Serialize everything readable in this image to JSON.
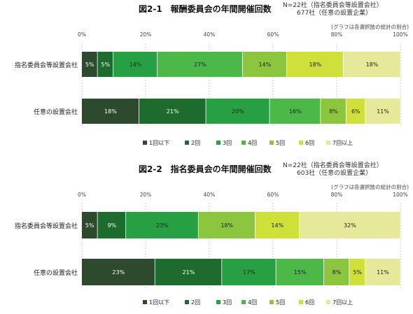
{
  "colors": [
    "#2e4a2e",
    "#1e6b2e",
    "#26a043",
    "#4bb848",
    "#8cc63f",
    "#cfe03a",
    "#e6e89a"
  ],
  "chart_data": [
    {
      "type": "bar",
      "stacked": "horizontal-100%",
      "title": "図2-1　報酬委員会の年間開催回数",
      "n_note": [
        "N=22社（指名委員会等設置会社）",
        "677社（任意の設置企業）"
      ],
      "note": "(グラフは各選択肢の総計の割合)",
      "ticks": [
        "0%",
        "20%",
        "40%",
        "60%",
        "80%",
        "100%"
      ],
      "xlim": [
        0,
        100
      ],
      "grid": true,
      "legend_position": "bottom",
      "categories": [
        "指名委員会等設置会社",
        "任意の設置会社"
      ],
      "series": [
        {
          "name": "1回以下",
          "values": [
            5,
            18
          ]
        },
        {
          "name": "2回",
          "values": [
            5,
            21
          ]
        },
        {
          "name": "3回",
          "values": [
            14,
            20
          ]
        },
        {
          "name": "4回",
          "values": [
            27,
            16
          ]
        },
        {
          "name": "5回",
          "values": [
            14,
            8
          ]
        },
        {
          "name": "6回",
          "values": [
            18,
            6
          ]
        },
        {
          "name": "7回以上",
          "values": [
            18,
            11
          ]
        }
      ]
    },
    {
      "type": "bar",
      "stacked": "horizontal-100%",
      "title": "図2-2　指名委員会の年間開催回数",
      "n_note": [
        "N=22社（指名委員会等設置会社）",
        "603社（任意の設置企業）"
      ],
      "note": "(グラフは各選択肢の総計の割合)",
      "ticks": [
        "0%",
        "20%",
        "40%",
        "60%",
        "80%",
        "100%"
      ],
      "xlim": [
        0,
        100
      ],
      "grid": true,
      "legend_position": "bottom",
      "categories": [
        "指名委員会等設置会社",
        "任意の設置会社"
      ],
      "series": [
        {
          "name": "1回以下",
          "values": [
            5,
            23
          ]
        },
        {
          "name": "2回",
          "values": [
            9,
            21
          ]
        },
        {
          "name": "3回",
          "values": [
            23,
            17
          ]
        },
        {
          "name": "4回",
          "values": [
            0,
            15
          ]
        },
        {
          "name": "5回",
          "values": [
            18,
            8
          ]
        },
        {
          "name": "6回",
          "values": [
            14,
            5
          ]
        },
        {
          "name": "7回以上",
          "values": [
            32,
            11
          ]
        }
      ]
    }
  ]
}
